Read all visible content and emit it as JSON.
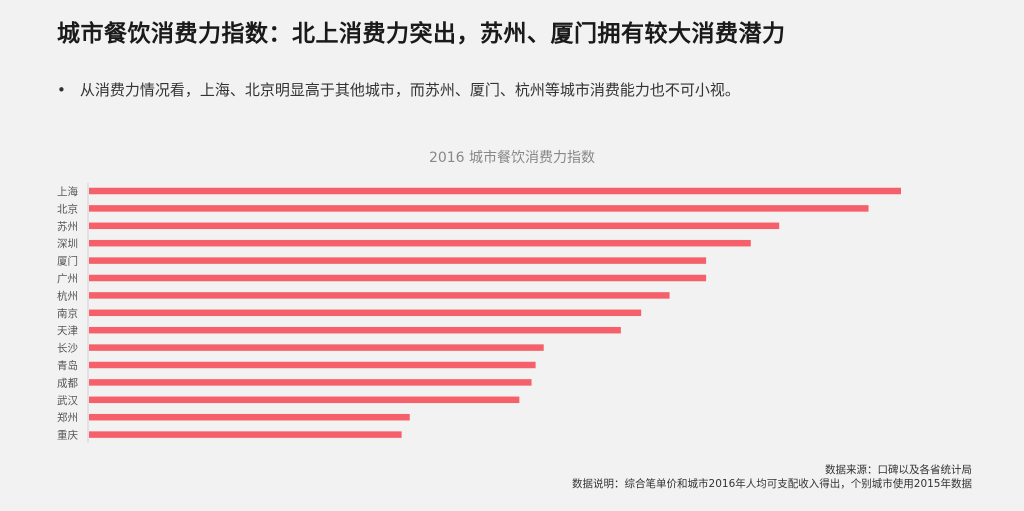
{
  "title": "城市餐饮消费力指数：北上消费力突出，苏州、厦门拥有较大消费潜力",
  "bullet": "从消费力情况看，上海、北京明显高于其他城市，而苏州、厦门、杭州等城市消费能力也不可小视。",
  "chart_data": {
    "type": "bar",
    "orientation": "horizontal",
    "title": "2016 城市餐饮消费力指数",
    "categories": [
      "上海",
      "北京",
      "苏州",
      "深圳",
      "厦门",
      "广州",
      "杭州",
      "南京",
      "天津",
      "长沙",
      "青岛",
      "成都",
      "武汉",
      "郑州",
      "重庆"
    ],
    "values": [
      100,
      96,
      85,
      81.5,
      76,
      76,
      71.5,
      68,
      65.5,
      56,
      55,
      54.5,
      53,
      39.5,
      38.5
    ],
    "xlim": [
      0,
      100
    ],
    "bar_color": "#f5606a",
    "grid": false,
    "xlabel": "",
    "ylabel": ""
  },
  "notes": {
    "source": "数据来源：口碑以及各省统计局",
    "explanation": "数据说明：综合笔单价和城市2016年人均可支配收入得出，个别城市使用2015年数据"
  }
}
